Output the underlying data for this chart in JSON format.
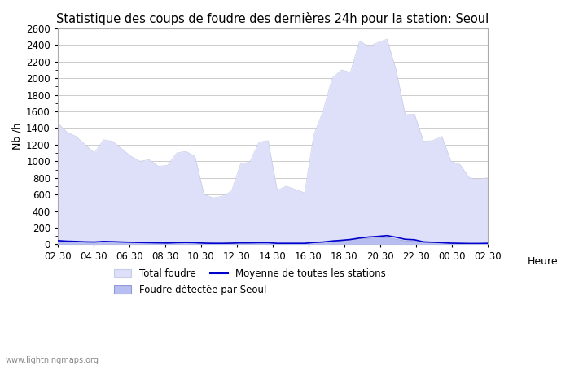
{
  "title": "Statistique des coups de foudre des dernières 24h pour la station: Seoul",
  "xlabel": "Heure",
  "ylabel": "Nb /h",
  "watermark": "www.lightningmaps.org",
  "ylim": [
    0,
    2600
  ],
  "yticks": [
    0,
    200,
    400,
    600,
    800,
    1000,
    1200,
    1400,
    1600,
    1800,
    2000,
    2200,
    2400,
    2600
  ],
  "xtick_labels": [
    "02:30",
    "04:30",
    "06:30",
    "08:30",
    "10:30",
    "12:30",
    "14:30",
    "16:30",
    "18:30",
    "20:30",
    "22:30",
    "00:30",
    "02:30"
  ],
  "bg_color": "#ffffff",
  "grid_color": "#cccccc",
  "total_foudre_color": "#dde0f8",
  "seoul_foudre_color": "#b8bef0",
  "mean_line_color": "#0000cc",
  "title_fontsize": 10.5,
  "axis_fontsize": 9,
  "tick_fontsize": 8.5,
  "total_foudre": [
    1460,
    1350,
    1300,
    1200,
    1100,
    1260,
    1240,
    1150,
    1060,
    1000,
    1020,
    940,
    950,
    1100,
    1120,
    1060,
    600,
    560,
    580,
    640,
    970,
    990,
    1230,
    1250,
    650,
    700,
    660,
    620,
    1320,
    1600,
    2000,
    2100,
    2070,
    2450,
    2380,
    2430,
    2470,
    2100,
    1560,
    1570,
    1240,
    1250,
    1300,
    1000,
    960,
    800,
    780,
    800
  ],
  "seoul_foudre": [
    40,
    35,
    32,
    28,
    25,
    30,
    28,
    25,
    22,
    20,
    18,
    16,
    14,
    18,
    20,
    18,
    12,
    10,
    10,
    12,
    15,
    15,
    18,
    18,
    10,
    10,
    10,
    10,
    20,
    25,
    35,
    40,
    50,
    65,
    70,
    75,
    80,
    60,
    40,
    38,
    20,
    18,
    16,
    12,
    10,
    8,
    8,
    10
  ],
  "mean_stations": [
    45,
    38,
    35,
    30,
    28,
    35,
    32,
    28,
    25,
    22,
    20,
    18,
    16,
    20,
    22,
    20,
    14,
    12,
    12,
    14,
    18,
    18,
    20,
    20,
    12,
    12,
    12,
    12,
    22,
    28,
    40,
    48,
    58,
    75,
    88,
    95,
    105,
    85,
    60,
    55,
    30,
    25,
    20,
    14,
    12,
    10,
    10,
    12
  ]
}
